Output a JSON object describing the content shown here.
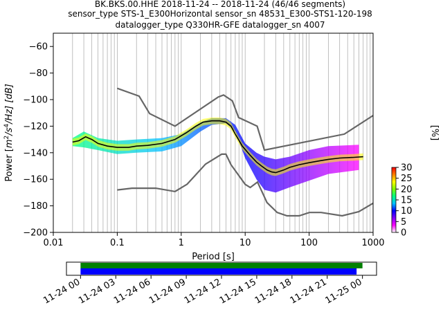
{
  "title": {
    "line1": "BK.BKS.00.HHE   2018-11-24 -- 2018-11-24  (46/46 segments)",
    "line2": "sensor_type STS-1_E300Horizontal sensor_sn 48531_E300-STS1-120-198",
    "line3": "datalogger_type Q330HR-GFE datalogger_sn 4007"
  },
  "chart_data": [
    {
      "type": "heatmap",
      "kind": "probabilistic power spectral density",
      "xlabel": "Period [s]",
      "ylabel_prefix": "Power [",
      "ylabel_unit_base": "m",
      "ylabel_unit_exp1": "2",
      "ylabel_unit_mid": "/s",
      "ylabel_unit_exp2": "4",
      "ylabel_unit_end": "/Hz] [dB]",
      "x_scale": "log",
      "xlim": [
        0.01,
        1000
      ],
      "ylim": [
        -200,
        -50
      ],
      "x_ticks": [
        {
          "v": 0.01,
          "label": "0.01"
        },
        {
          "v": 0.1,
          "label": "0.1"
        },
        {
          "v": 1,
          "label": "1"
        },
        {
          "v": 10,
          "label": "10"
        },
        {
          "v": 100,
          "label": "100"
        },
        {
          "v": 1000,
          "label": "1000"
        }
      ],
      "y_ticks": [
        {
          "v": -60,
          "label": "−60"
        },
        {
          "v": -80,
          "label": "−80"
        },
        {
          "v": -100,
          "label": "−100"
        },
        {
          "v": -120,
          "label": "−120"
        },
        {
          "v": -140,
          "label": "−140"
        },
        {
          "v": -160,
          "label": "−160"
        },
        {
          "v": -180,
          "label": "−180"
        },
        {
          "v": -200,
          "label": "−200"
        }
      ],
      "grid": "vertical log grid",
      "noise_models": {
        "color": "#666666",
        "new_high_noise_model": {
          "x": [
            0.1,
            0.22,
            0.32,
            0.8,
            3.8,
            4.6,
            6.3,
            7.9,
            15.4,
            20,
            354.8,
            1000
          ],
          "y": [
            -91.5,
            -97.4,
            -110.5,
            -120,
            -98,
            -96.5,
            -101,
            -113.5,
            -120,
            -138,
            -126,
            -112
          ]
        },
        "new_low_noise_model": {
          "x": [
            0.1,
            0.17,
            0.4,
            0.8,
            1.24,
            2.4,
            4.3,
            5,
            6,
            10,
            12,
            15.6,
            21.9,
            31.6,
            45,
            70,
            101,
            154,
            328,
            600,
            1000
          ],
          "y": [
            -168,
            -166.7,
            -166.7,
            -169.2,
            -163.7,
            -148.6,
            -141.1,
            -141.1,
            -149,
            -163.8,
            -166.2,
            -162.1,
            -177.5,
            -185,
            -187.5,
            -187.5,
            -185,
            -185,
            -187.5,
            -184.4,
            -178
          ]
        }
      },
      "mean_curve": {
        "color": "#000000",
        "x": [
          0.02,
          0.025,
          0.032,
          0.04,
          0.05,
          0.07,
          0.1,
          0.15,
          0.2,
          0.3,
          0.5,
          0.8,
          1.2,
          1.7,
          2.2,
          3,
          4,
          5,
          6,
          7,
          9,
          12,
          15,
          18,
          22,
          26,
          30,
          40,
          50,
          70,
          100,
          150,
          200,
          300,
          500,
          700
        ],
        "y": [
          -132,
          -131,
          -128,
          -130,
          -133,
          -135,
          -136,
          -136,
          -135,
          -134.5,
          -133,
          -130,
          -125,
          -120,
          -117,
          -116,
          -116,
          -117,
          -120,
          -126,
          -135,
          -142,
          -147,
          -150,
          -153,
          -154.5,
          -155,
          -153,
          -151,
          -149,
          -147.5,
          -146,
          -145,
          -144,
          -143.5,
          -143
        ]
      },
      "density": {
        "colorbar_label": "[%]",
        "colorbar_range": [
          0,
          30
        ],
        "colorbar_ticks": [
          0,
          5,
          10,
          15,
          20,
          25,
          30
        ],
        "colormap": [
          "#ffffff",
          "#ff00ff",
          "#8000ff",
          "#0000ff",
          "#00c0ff",
          "#00ff80",
          "#80ff00",
          "#ffff00",
          "#ff8000",
          "#ff0000"
        ],
        "envelope": {
          "x": [
            0.02,
            0.03,
            0.05,
            0.1,
            0.2,
            0.5,
            1,
            2,
            3,
            5,
            7,
            10,
            15,
            20,
            30,
            50,
            100,
            200,
            600
          ],
          "upper": [
            -129,
            -124,
            -129,
            -131,
            -130,
            -129,
            -126,
            -117,
            -114,
            -114,
            -119,
            -133,
            -140,
            -143,
            -145,
            -143,
            -138,
            -135,
            -134
          ],
          "lower": [
            -135,
            -136,
            -138,
            -141,
            -140,
            -139,
            -135,
            -124,
            -119,
            -118,
            -124,
            -144,
            -160,
            -168,
            -170,
            -166,
            -161,
            -156,
            -153
          ]
        }
      }
    },
    {
      "type": "timeline",
      "kind": "data coverage",
      "x_ticks": [
        "11-24 00",
        "11-24 03",
        "11-24 06",
        "11-24 09",
        "11-24 12",
        "11-24 15",
        "11-24 18",
        "11-24 21",
        "11-25 00"
      ],
      "x_tick_hours": [
        0,
        3,
        6,
        9,
        12,
        15,
        18,
        21,
        24
      ],
      "xlim_hours": [
        -1.2,
        25.2
      ],
      "bars": [
        {
          "name": "data available",
          "color": "#008000",
          "start_hour": 0,
          "end_hour": 24
        },
        {
          "name": "data used",
          "color": "#0000ff",
          "start_hour": 0,
          "end_hour": 23.5
        }
      ]
    }
  ]
}
